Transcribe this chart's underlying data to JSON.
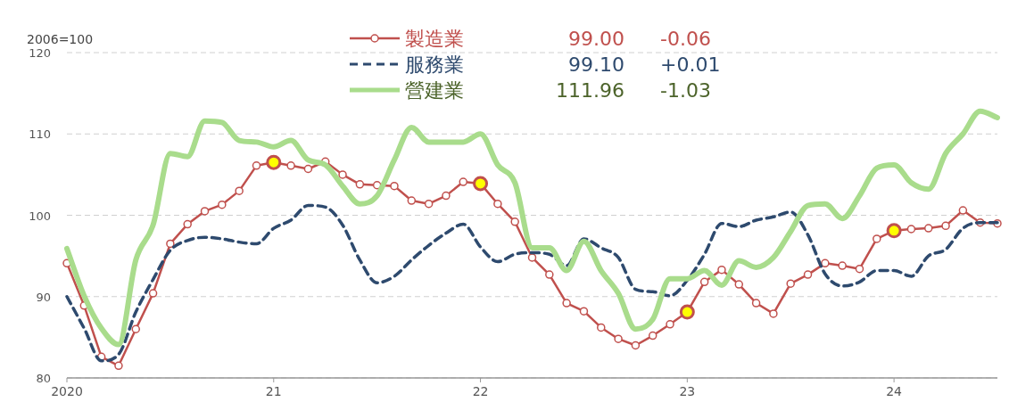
{
  "chart_data": {
    "type": "line",
    "ylabel": "2006=100",
    "x": [
      "2020-01",
      "2020-02",
      "2020-03",
      "2020-04",
      "2020-05",
      "2020-06",
      "2020-07",
      "2020-08",
      "2020-09",
      "2020-10",
      "2020-11",
      "2020-12",
      "2021-01",
      "2021-02",
      "2021-03",
      "2021-04",
      "2021-05",
      "2021-06",
      "2021-07",
      "2021-08",
      "2021-09",
      "2021-10",
      "2021-11",
      "2021-12",
      "2022-01",
      "2022-02",
      "2022-03",
      "2022-04",
      "2022-05",
      "2022-06",
      "2022-07",
      "2022-08",
      "2022-09",
      "2022-10",
      "2022-11",
      "2022-12",
      "2023-01",
      "2023-02",
      "2023-03",
      "2023-04",
      "2023-05",
      "2023-06",
      "2023-07",
      "2023-08",
      "2023-09",
      "2023-10",
      "2023-11",
      "2023-12",
      "2024-01",
      "2024-02",
      "2024-03",
      "2024-04",
      "2024-05",
      "2024-06",
      "2024-07"
    ],
    "series": [
      {
        "name": "製造業",
        "color": "#c0504d",
        "marker": "circle",
        "line_style": "solid",
        "values": [
          94.1,
          88.9,
          82.6,
          81.5,
          86.0,
          90.4,
          96.5,
          98.9,
          100.5,
          101.3,
          103.0,
          106.1,
          106.5,
          106.1,
          105.7,
          106.6,
          105.0,
          103.8,
          103.7,
          103.6,
          101.8,
          101.4,
          102.4,
          104.1,
          103.9,
          101.4,
          99.2,
          94.8,
          92.7,
          89.2,
          88.2,
          86.2,
          84.8,
          84.0,
          85.2,
          86.6,
          88.1,
          91.8,
          93.3,
          91.5,
          89.2,
          87.9,
          91.6,
          92.7,
          94.1,
          93.8,
          93.4,
          97.1,
          98.1,
          98.3,
          98.4,
          98.7,
          100.6,
          99.1,
          99.0
        ]
      },
      {
        "name": "服務業",
        "color": "#2e4a6e",
        "marker": "none",
        "line_style": "dashed",
        "values": [
          90.0,
          86.1,
          82.1,
          82.9,
          88.1,
          92.1,
          95.7,
          96.9,
          97.3,
          97.1,
          96.7,
          96.5,
          98.4,
          99.4,
          101.2,
          101.0,
          98.8,
          94.5,
          91.7,
          92.5,
          94.5,
          96.3,
          97.8,
          98.9,
          96.1,
          94.3,
          95.2,
          95.4,
          95.2,
          93.8,
          97.1,
          96.0,
          94.8,
          90.9,
          90.6,
          90.1,
          92.0,
          95.2,
          99.0,
          98.6,
          99.4,
          99.8,
          100.4,
          97.6,
          92.8,
          91.3,
          91.8,
          93.2,
          93.2,
          92.5,
          95.0,
          95.8,
          98.4,
          99.1,
          99.1
        ]
      },
      {
        "name": "營建業",
        "color": "#a9dc8c",
        "marker": "none",
        "line_style": "solid",
        "values": [
          95.9,
          90.1,
          86.1,
          84.1,
          94.5,
          98.8,
          107.6,
          107.2,
          111.6,
          111.4,
          109.2,
          109.0,
          108.4,
          109.2,
          106.8,
          106.2,
          103.6,
          101.4,
          102.4,
          106.8,
          110.8,
          109.0,
          109.0,
          109.0,
          110.0,
          106.2,
          104.0,
          96.0,
          96.0,
          93.2,
          96.8,
          93.2,
          90.4,
          86.0,
          87.2,
          92.2,
          92.2,
          93.2,
          91.4,
          94.4,
          93.6,
          94.8,
          98.0,
          101.2,
          101.4,
          99.6,
          102.4,
          105.8,
          106.2,
          104.0,
          103.2,
          107.6,
          110.0,
          112.8,
          112.0
        ]
      },
      {
        "type": "scatter",
        "color": "#ffff00",
        "marker": "circle",
        "x": [
          "2021-01",
          "2022-01",
          "2023-01",
          "2024-01"
        ],
        "values": [
          106.5,
          103.9,
          88.1,
          98.1
        ]
      }
    ],
    "xlim": [
      "2020-01",
      "2024-07"
    ],
    "xticks": [
      {
        "value": "2020-01",
        "label": "2020"
      },
      {
        "value": "2021-01",
        "label": "21"
      },
      {
        "value": "2022-01",
        "label": "22"
      },
      {
        "value": "2023-01",
        "label": "23"
      },
      {
        "value": "2024-01",
        "label": "24"
      }
    ],
    "ylim": [
      80,
      120
    ],
    "yticks": [
      80,
      90,
      100,
      110,
      120
    ],
    "grid": "y",
    "legend": "top",
    "annotations": [
      "99.00",
      "-0.06",
      "99.10",
      "+0.01",
      "111.96",
      "-1.03"
    ]
  }
}
